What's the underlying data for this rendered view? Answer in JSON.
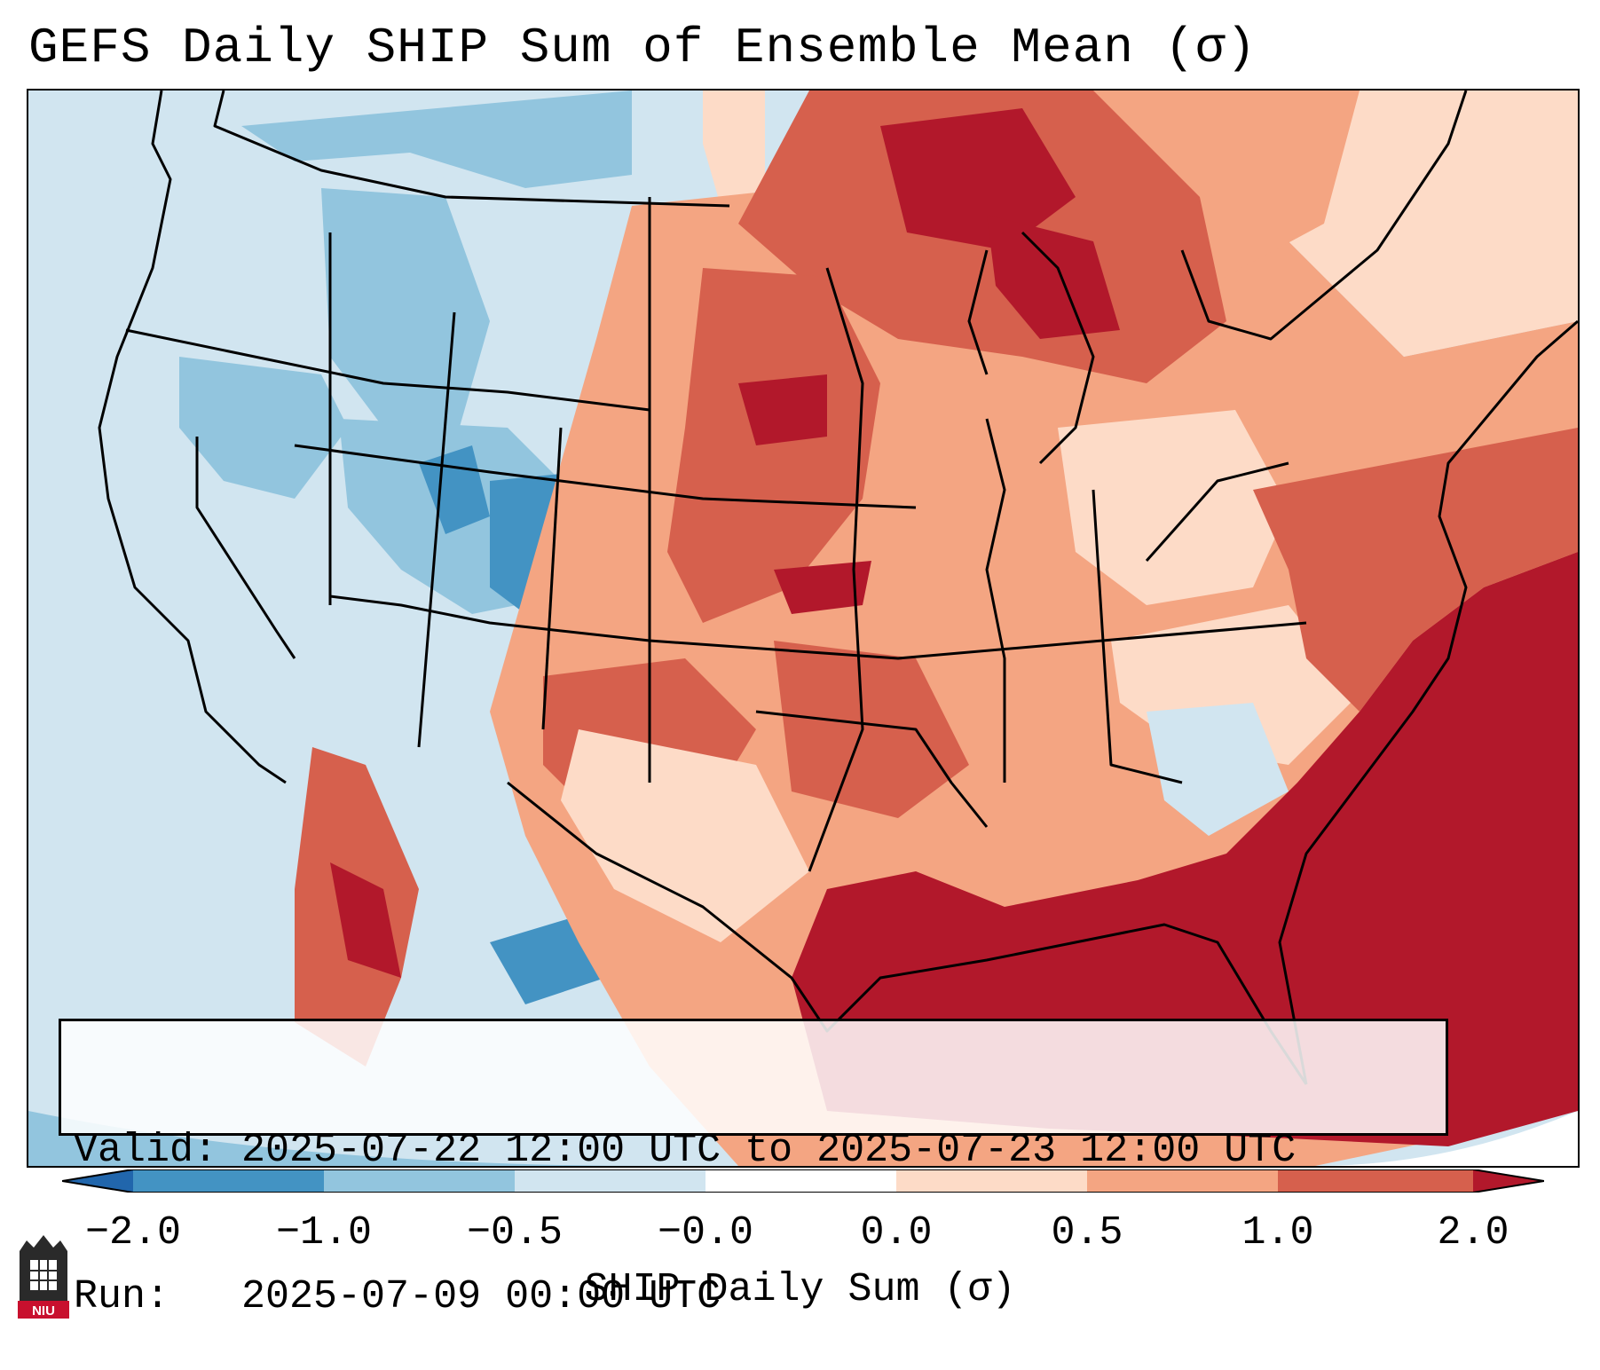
{
  "title": "GEFS Daily SHIP Sum of Ensemble Mean (σ)",
  "info": {
    "valid": "Valid: 2025-07-22 12:00 UTC to 2025-07-23 12:00 UTC",
    "run": "Run:   2025-07-09 00:00 UTC"
  },
  "colorbar": {
    "label": "SHIP Daily Sum (σ)",
    "ticks": [
      "−2.0",
      "−1.0",
      "−0.5",
      "−0.0",
      "0.0",
      "0.5",
      "1.0",
      "2.0"
    ],
    "colors": [
      "#2166ac",
      "#4393c3",
      "#92c5de",
      "#d1e5f0",
      "#ffffff",
      "#fddbc7",
      "#f4a582",
      "#d6604d",
      "#b2182b"
    ]
  },
  "logo": {
    "text": "NIU",
    "color": "#c8102e"
  }
}
